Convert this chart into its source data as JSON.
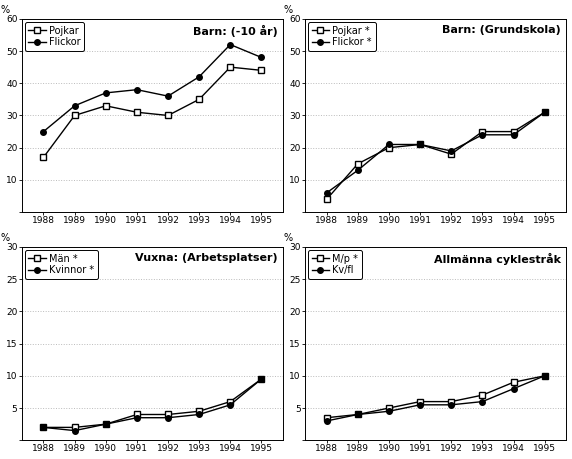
{
  "years": [
    1988,
    1989,
    1990,
    1991,
    1992,
    1993,
    1994,
    1995
  ],
  "panels": [
    {
      "title": "Barn: (-10 år)",
      "percent_label": "%",
      "ylim": [
        0,
        60
      ],
      "yticks": [
        0,
        10,
        20,
        30,
        40,
        50,
        60
      ],
      "series": [
        {
          "label": "Pojkar",
          "marker": "s",
          "filled": false,
          "values": [
            17,
            30,
            33,
            31,
            30,
            35,
            45,
            44
          ]
        },
        {
          "label": "Flickor",
          "marker": "o",
          "filled": true,
          "values": [
            25,
            33,
            37,
            38,
            36,
            42,
            52,
            48
          ]
        }
      ]
    },
    {
      "title": "Barn: (Grundskola)",
      "percent_label": "%",
      "ylim": [
        0,
        60
      ],
      "yticks": [
        0,
        10,
        20,
        30,
        40,
        50,
        60
      ],
      "series": [
        {
          "label": "Pojkar *",
          "marker": "s",
          "filled": false,
          "values": [
            4,
            15,
            20,
            21,
            18,
            25,
            25,
            31
          ]
        },
        {
          "label": "Flickor *",
          "marker": "o",
          "filled": true,
          "values": [
            6,
            13,
            21,
            21,
            19,
            24,
            24,
            31
          ]
        }
      ]
    },
    {
      "title": "Vuxna: (Arbetsplatser)",
      "percent_label": "%",
      "ylim": [
        0,
        30
      ],
      "yticks": [
        0,
        5,
        10,
        15,
        20,
        25,
        30
      ],
      "series": [
        {
          "label": "Män *",
          "marker": "s",
          "filled": false,
          "values": [
            2.0,
            2.0,
            2.5,
            4.0,
            4.0,
            4.5,
            6.0,
            9.5
          ]
        },
        {
          "label": "Kvinnor *",
          "marker": "o",
          "filled": true,
          "values": [
            2.0,
            1.5,
            2.5,
            3.5,
            3.5,
            4.0,
            5.5,
            9.5
          ]
        }
      ]
    },
    {
      "title": "Allmänna cyklestråk",
      "percent_label": "%",
      "ylim": [
        0,
        30
      ],
      "yticks": [
        0,
        5,
        10,
        15,
        20,
        25,
        30
      ],
      "series": [
        {
          "label": "M/p *",
          "marker": "s",
          "filled": false,
          "values": [
            3.5,
            4.0,
            5.0,
            6.0,
            6.0,
            7.0,
            9.0,
            10.0
          ]
        },
        {
          "label": "Kv/fl",
          "marker": "o",
          "filled": true,
          "values": [
            3.0,
            4.0,
            4.5,
            5.5,
            5.5,
            6.0,
            8.0,
            10.0
          ]
        }
      ]
    }
  ],
  "line_color": "#000000",
  "filled_color": "#000000",
  "open_color": "#ffffff",
  "grid_color": "#bbbbbb",
  "background_color": "#ffffff",
  "tick_fontsize": 6.5,
  "title_fontsize": 8,
  "legend_fontsize": 7,
  "marker_size": 4,
  "linewidth": 1.0
}
